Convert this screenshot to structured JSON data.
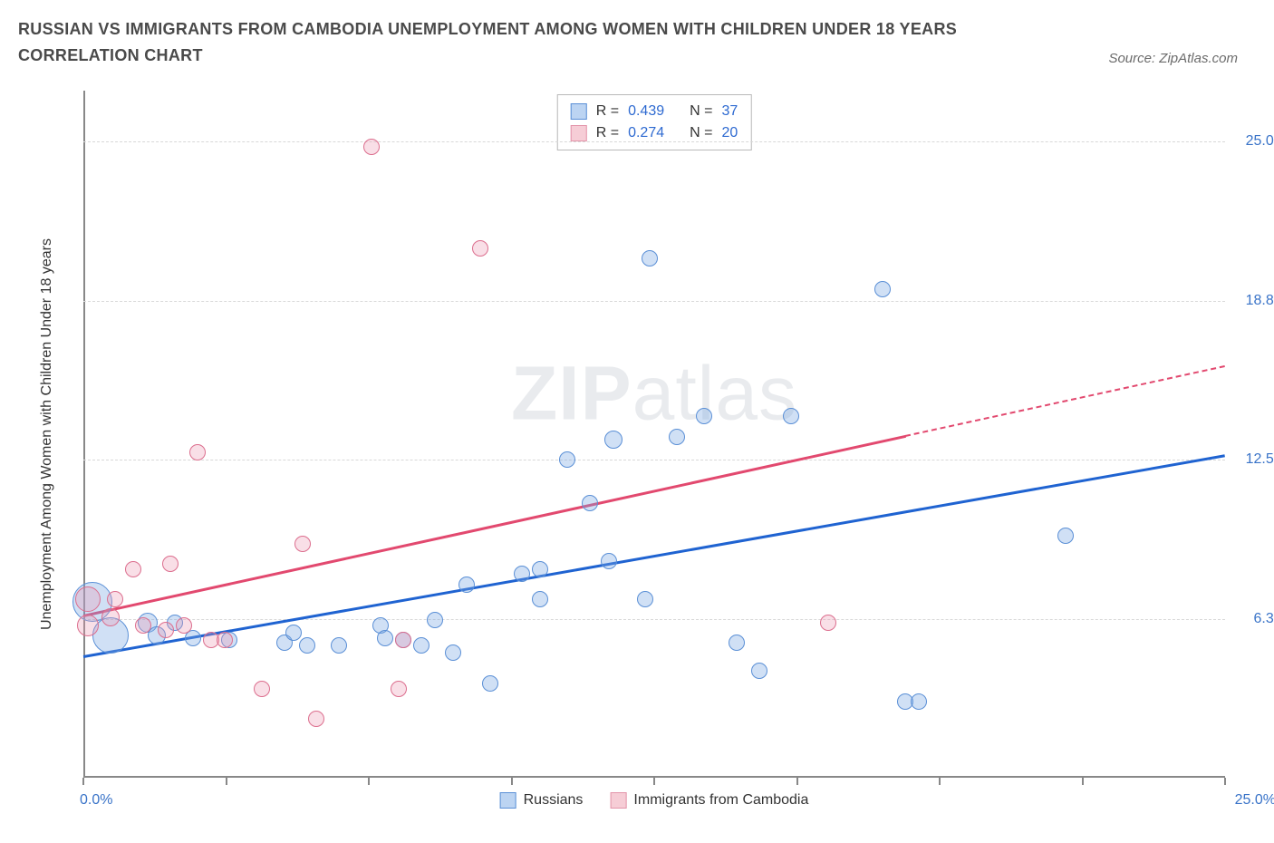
{
  "title": "RUSSIAN VS IMMIGRANTS FROM CAMBODIA UNEMPLOYMENT AMONG WOMEN WITH CHILDREN UNDER 18 YEARS CORRELATION CHART",
  "source": "Source: ZipAtlas.com",
  "watermark": {
    "bold": "ZIP",
    "light": "atlas"
  },
  "chart": {
    "type": "scatter",
    "ylabel": "Unemployment Among Women with Children Under 18 years",
    "xlim": [
      0,
      25
    ],
    "ylim": [
      0,
      27
    ],
    "xlim_labels": {
      "min": "0.0%",
      "max": "25.0%"
    },
    "xtick_positions": [
      0,
      3.125,
      6.25,
      9.375,
      12.5,
      15.625,
      18.75,
      21.875,
      25
    ],
    "ytick_positions": [
      6.25,
      12.5,
      18.75,
      25.0
    ],
    "ytick_labels": [
      "6.3%",
      "12.5%",
      "18.8%",
      "25.0%"
    ],
    "grid_color": "#d8d8d8",
    "axis_color": "#888888",
    "tick_label_color": "#3973c8",
    "background_color": "#ffffff",
    "stats": [
      {
        "swatch_fill": "#bcd4f2",
        "swatch_stroke": "#5a8fd6",
        "r_label": "R =",
        "r_value": "0.439",
        "n_label": "N =",
        "n_value": "37"
      },
      {
        "swatch_fill": "#f6cdd6",
        "swatch_stroke": "#e394aa",
        "r_label": "R =",
        "r_value": "0.274",
        "n_label": "N =",
        "n_value": "20"
      }
    ],
    "legend": [
      {
        "swatch_fill": "#bcd4f2",
        "swatch_stroke": "#5a8fd6",
        "label": "Russians"
      },
      {
        "swatch_fill": "#f6cdd6",
        "swatch_stroke": "#e394aa",
        "label": "Immigrants from Cambodia"
      }
    ],
    "series": [
      {
        "name": "Russians",
        "fill": "rgba(120,165,225,0.35)",
        "stroke": "#5a8fd6",
        "trend": {
          "x1": 0,
          "y1": 4.8,
          "x2": 25,
          "y2": 12.7,
          "solid_to_x": 25,
          "color": "#1f63d1"
        },
        "points": [
          {
            "x": 0.2,
            "y": 6.9,
            "r": 22
          },
          {
            "x": 0.6,
            "y": 5.6,
            "r": 20
          },
          {
            "x": 1.4,
            "y": 6.1,
            "r": 11
          },
          {
            "x": 1.6,
            "y": 5.6,
            "r": 10
          },
          {
            "x": 2.0,
            "y": 6.1,
            "r": 9
          },
          {
            "x": 2.4,
            "y": 5.5,
            "r": 9
          },
          {
            "x": 3.2,
            "y": 5.4,
            "r": 9
          },
          {
            "x": 4.4,
            "y": 5.3,
            "r": 9
          },
          {
            "x": 4.6,
            "y": 5.7,
            "r": 9
          },
          {
            "x": 4.9,
            "y": 5.2,
            "r": 9
          },
          {
            "x": 5.6,
            "y": 5.2,
            "r": 9
          },
          {
            "x": 6.5,
            "y": 6.0,
            "r": 9
          },
          {
            "x": 6.6,
            "y": 5.5,
            "r": 9
          },
          {
            "x": 7.0,
            "y": 5.4,
            "r": 9
          },
          {
            "x": 7.4,
            "y": 5.2,
            "r": 9
          },
          {
            "x": 7.7,
            "y": 6.2,
            "r": 9
          },
          {
            "x": 8.1,
            "y": 4.9,
            "r": 9
          },
          {
            "x": 8.4,
            "y": 7.6,
            "r": 9
          },
          {
            "x": 8.9,
            "y": 3.7,
            "r": 9
          },
          {
            "x": 9.6,
            "y": 8.0,
            "r": 9
          },
          {
            "x": 10.0,
            "y": 8.2,
            "r": 9
          },
          {
            "x": 10.0,
            "y": 7.0,
            "r": 9
          },
          {
            "x": 10.6,
            "y": 12.5,
            "r": 9
          },
          {
            "x": 11.1,
            "y": 10.8,
            "r": 9
          },
          {
            "x": 11.5,
            "y": 8.5,
            "r": 9
          },
          {
            "x": 11.6,
            "y": 13.3,
            "r": 10
          },
          {
            "x": 12.3,
            "y": 7.0,
            "r": 9
          },
          {
            "x": 12.4,
            "y": 20.4,
            "r": 9
          },
          {
            "x": 13.0,
            "y": 13.4,
            "r": 9
          },
          {
            "x": 13.6,
            "y": 14.2,
            "r": 9
          },
          {
            "x": 14.3,
            "y": 5.3,
            "r": 9
          },
          {
            "x": 14.8,
            "y": 4.2,
            "r": 9
          },
          {
            "x": 15.5,
            "y": 14.2,
            "r": 9
          },
          {
            "x": 17.5,
            "y": 19.2,
            "r": 9
          },
          {
            "x": 18.0,
            "y": 3.0,
            "r": 9
          },
          {
            "x": 18.3,
            "y": 3.0,
            "r": 9
          },
          {
            "x": 21.5,
            "y": 9.5,
            "r": 9
          }
        ]
      },
      {
        "name": "Immigrants from Cambodia",
        "fill": "rgba(235,150,175,0.30)",
        "stroke": "#dc6e8e",
        "trend": {
          "x1": 0,
          "y1": 6.4,
          "x2": 25,
          "y2": 16.2,
          "solid_to_x": 18,
          "color": "#e2496f"
        },
        "points": [
          {
            "x": 0.1,
            "y": 7.0,
            "r": 14
          },
          {
            "x": 0.1,
            "y": 6.0,
            "r": 12
          },
          {
            "x": 0.6,
            "y": 6.3,
            "r": 10
          },
          {
            "x": 0.7,
            "y": 7.0,
            "r": 9
          },
          {
            "x": 1.1,
            "y": 8.2,
            "r": 9
          },
          {
            "x": 1.3,
            "y": 6.0,
            "r": 9
          },
          {
            "x": 1.8,
            "y": 5.8,
            "r": 9
          },
          {
            "x": 1.9,
            "y": 8.4,
            "r": 9
          },
          {
            "x": 2.2,
            "y": 6.0,
            "r": 9
          },
          {
            "x": 2.5,
            "y": 12.8,
            "r": 9
          },
          {
            "x": 2.8,
            "y": 5.4,
            "r": 9
          },
          {
            "x": 3.1,
            "y": 5.4,
            "r": 9
          },
          {
            "x": 3.9,
            "y": 3.5,
            "r": 9
          },
          {
            "x": 4.8,
            "y": 9.2,
            "r": 9
          },
          {
            "x": 5.1,
            "y": 2.3,
            "r": 9
          },
          {
            "x": 6.3,
            "y": 24.8,
            "r": 9
          },
          {
            "x": 6.9,
            "y": 3.5,
            "r": 9
          },
          {
            "x": 7.0,
            "y": 5.4,
            "r": 9
          },
          {
            "x": 8.7,
            "y": 20.8,
            "r": 9
          },
          {
            "x": 16.3,
            "y": 6.1,
            "r": 9
          }
        ]
      }
    ]
  }
}
